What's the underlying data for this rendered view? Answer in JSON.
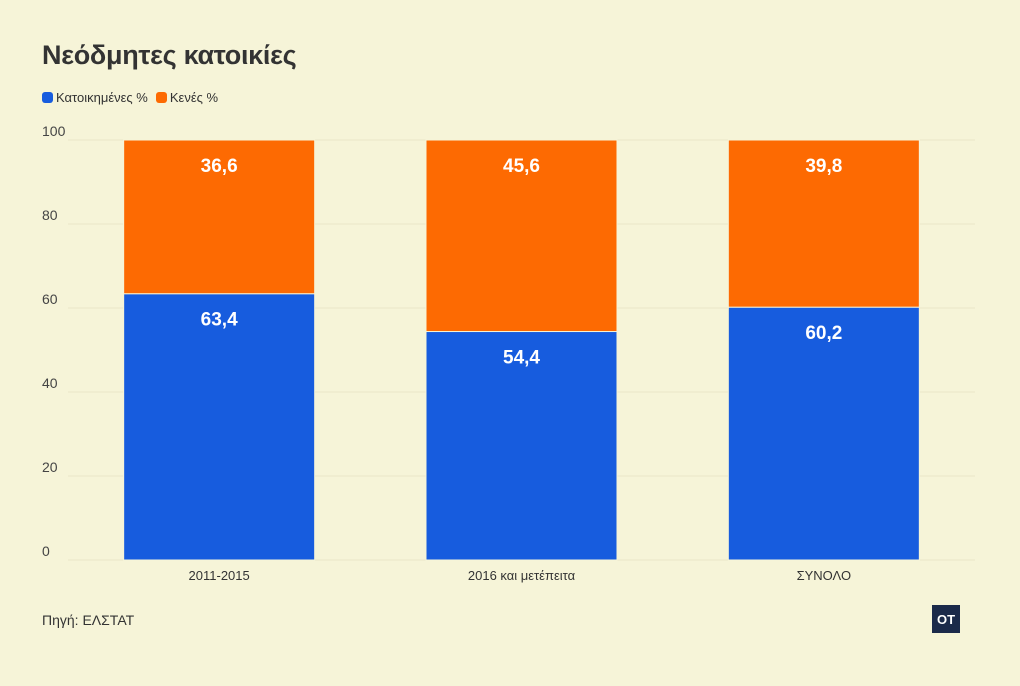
{
  "header": {
    "title": "Νεόδμητες κατοικίες"
  },
  "legend": [
    {
      "label": "Κατοικημένες %",
      "color": "#175cde"
    },
    {
      "label": "Κενές %",
      "color": "#fd6a02"
    }
  ],
  "footer": {
    "source": "Πηγή: ΕΛΣΤΑΤ",
    "logo_text": "OT"
  },
  "chart_data": {
    "type": "bar",
    "stacked": true,
    "categories": [
      "2011-2015",
      "2016 και μετέπειτα",
      "ΣΥΝΟΛΟ"
    ],
    "series": [
      {
        "name": "Κατοικημένες %",
        "values": [
          63.4,
          54.4,
          60.2
        ],
        "labels": [
          "63,4",
          "54,4",
          "60,2"
        ],
        "color": "#175cde"
      },
      {
        "name": "Κενές %",
        "values": [
          36.6,
          45.6,
          39.8
        ],
        "labels": [
          "36,6",
          "45,6",
          "39,8"
        ],
        "color": "#fd6a02"
      }
    ],
    "yticks": [
      0,
      20,
      40,
      60,
      80,
      100
    ],
    "ylim": [
      0,
      100
    ],
    "grid": true,
    "legend_position": "top-left"
  }
}
